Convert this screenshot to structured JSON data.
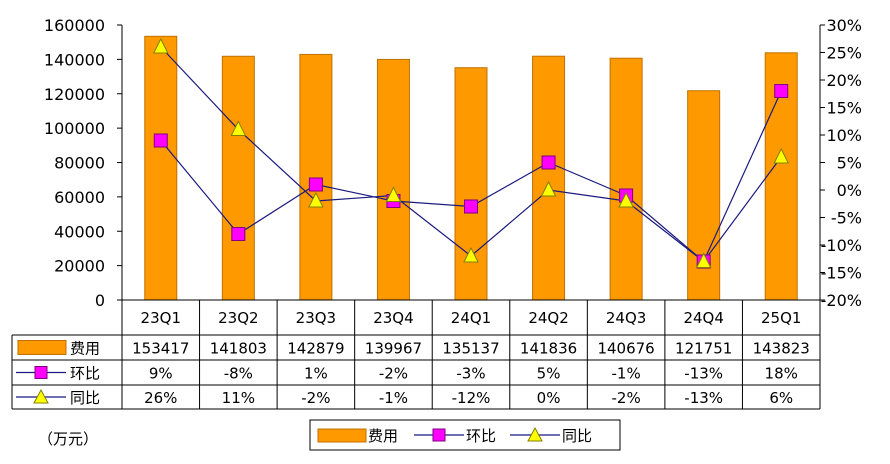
{
  "unit_label": "（万元）",
  "chart_data": {
    "type": "bar",
    "categories": [
      "23Q1",
      "23Q2",
      "23Q3",
      "23Q4",
      "24Q1",
      "24Q2",
      "24Q3",
      "24Q4",
      "25Q1"
    ],
    "series": [
      {
        "name": "费用",
        "type": "bar",
        "axis": "left",
        "values": [
          153417,
          141803,
          142879,
          139967,
          135137,
          141836,
          140676,
          121751,
          143823
        ],
        "labels": [
          "153417",
          "141803",
          "142879",
          "139967",
          "135137",
          "141836",
          "140676",
          "121751",
          "143823"
        ]
      },
      {
        "name": "环比",
        "type": "line",
        "axis": "right",
        "marker": "square",
        "values": [
          9,
          -8,
          1,
          -2,
          -3,
          5,
          -1,
          -13,
          18
        ],
        "labels": [
          "9%",
          "-8%",
          "1%",
          "-2%",
          "-3%",
          "5%",
          "-1%",
          "-13%",
          "18%"
        ]
      },
      {
        "name": "同比",
        "type": "line",
        "axis": "right",
        "marker": "triangle",
        "values": [
          26,
          11,
          -2,
          -1,
          -12,
          0,
          -2,
          -13,
          6
        ],
        "labels": [
          "26%",
          "11%",
          "-2%",
          "-1%",
          "-12%",
          "0%",
          "-2%",
          "-13%",
          "6%"
        ]
      }
    ],
    "y_left": {
      "range": [
        0,
        160000
      ],
      "ticks": [
        "0",
        "20000",
        "40000",
        "60000",
        "80000",
        "100000",
        "120000",
        "140000",
        "160000"
      ]
    },
    "y_right": {
      "range": [
        -20,
        30
      ],
      "ticks": [
        "-20%",
        "-15%",
        "-10%",
        "-5%",
        "0%",
        "5%",
        "10%",
        "15%",
        "20%",
        "25%",
        "30%"
      ]
    },
    "legend_position": "bottom",
    "data_table": true,
    "grid": false,
    "colors": {
      "bar": "#ff9900",
      "bar_edge": "#c07000",
      "line": "#1a1a80",
      "square": "#ff00ff",
      "triangle": "#ffff00"
    }
  }
}
